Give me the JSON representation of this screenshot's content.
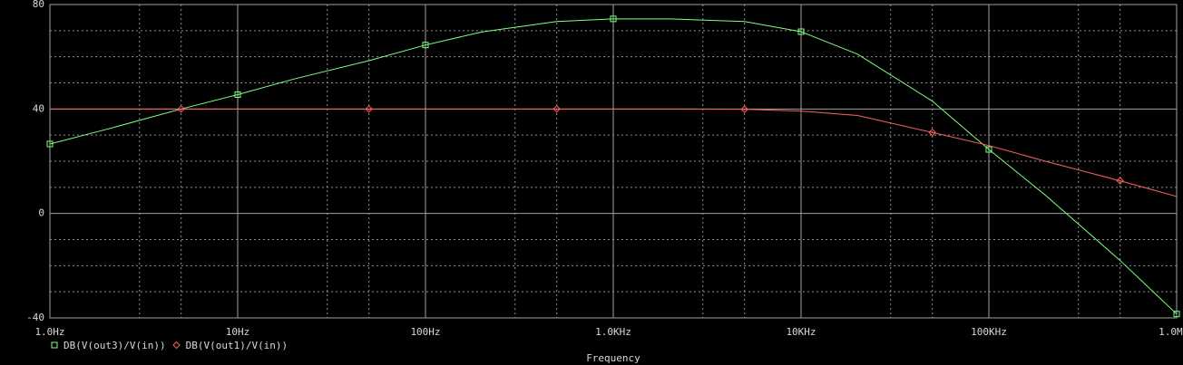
{
  "chart_data": {
    "type": "line",
    "x_label": "Frequency",
    "xscale": "log",
    "xlim": [
      1,
      1000000
    ],
    "xticks": [
      {
        "value": 1,
        "label": "1.0Hz"
      },
      {
        "value": 10,
        "label": "10Hz"
      },
      {
        "value": 100,
        "label": "100Hz"
      },
      {
        "value": 1000,
        "label": "1.0KHz"
      },
      {
        "value": 10000,
        "label": "10KHz"
      },
      {
        "value": 100000,
        "label": "100KHz"
      },
      {
        "value": 1000000,
        "label": "1.0MHz"
      }
    ],
    "ylim": [
      -40,
      80
    ],
    "yticks": [
      -40,
      0,
      40,
      80
    ],
    "grid": true,
    "minor_grid": true,
    "x": [
      1,
      2,
      5,
      10,
      20,
      50,
      100,
      200,
      500,
      1000,
      2000,
      5000,
      10000,
      20000,
      50000,
      100000,
      200000,
      500000,
      1000000
    ],
    "series": [
      {
        "name": "DB(V(out3)/V(in))",
        "color": "#80ff80",
        "marker": "square",
        "values": [
          26.6,
          32.2,
          40,
          45.5,
          51.5,
          58.5,
          64.5,
          69.5,
          73.5,
          74.5,
          74.5,
          73.5,
          69.6,
          61,
          43,
          24.5,
          7,
          -18,
          -38.5
        ]
      },
      {
        "name": "DB(V(out1)/V(in))",
        "color": "#ff6060",
        "marker": "diamond",
        "values": [
          40,
          40,
          40,
          40,
          40,
          40,
          40,
          40,
          40,
          40,
          40,
          39.9,
          39.2,
          37.5,
          31,
          26,
          20,
          12.5,
          6.5
        ]
      }
    ]
  }
}
